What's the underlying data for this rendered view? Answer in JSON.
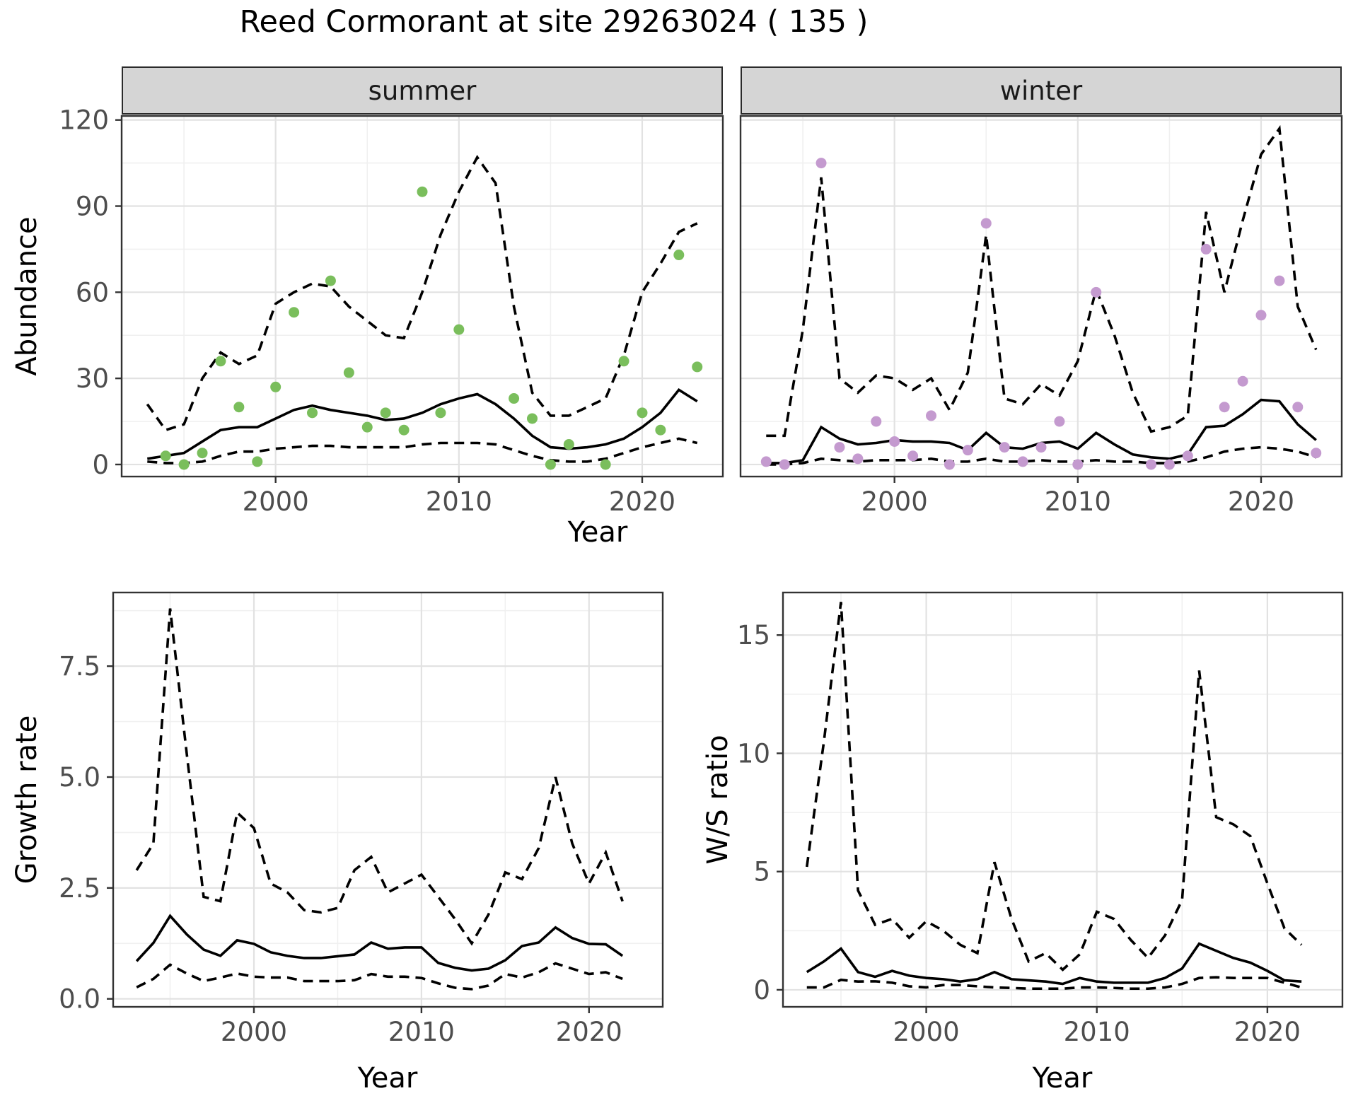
{
  "title": "Reed Cormorant at site 29263024 ( 135 )",
  "axis_titles": {
    "abundance": "Abundance",
    "year_top": "Year",
    "growth": "Growth rate",
    "ws": "W/S ratio",
    "year_growth": "Year",
    "year_ws": "Year"
  },
  "facets": {
    "summer": "summer",
    "winter": "winter"
  },
  "colors": {
    "summer_point": "#7abe5c",
    "winter_point": "#c49acf",
    "line": "#000000",
    "strip_bg": "#d5d5d5",
    "grid_major": "#e2e2e2",
    "grid_minor": "#f0f0f0",
    "panel_border": "#333333",
    "tick_text": "#4d4d4d"
  },
  "chart_data": {
    "type": "line",
    "title": "Reed Cormorant at site 29263024 ( 135 )",
    "legend_position": "none",
    "grid": true,
    "panels": [
      {
        "id": "summer",
        "facet_label": "summer",
        "xlabel": "Year",
        "ylabel": "Abundance",
        "xlim": [
          1991.6,
          2024.4
        ],
        "ylim": [
          -4.2,
          121.4
        ],
        "x_ticks": [
          {
            "v": 2000,
            "label": "2000"
          },
          {
            "v": 2010,
            "label": "2010"
          },
          {
            "v": 2020,
            "label": "2020"
          }
        ],
        "y_ticks": [
          {
            "v": 0,
            "label": "0"
          },
          {
            "v": 30,
            "label": "30"
          },
          {
            "v": 60,
            "label": "60"
          },
          {
            "v": 90,
            "label": "90"
          },
          {
            "v": 120,
            "label": "120"
          }
        ],
        "x_minor": [
          1995,
          2005,
          2015
        ],
        "y_minor": [
          15,
          45,
          75,
          105
        ],
        "point_color": "#7abe5c",
        "years": [
          1993,
          1994,
          1995,
          1996,
          1997,
          1998,
          1999,
          2000,
          2001,
          2002,
          2003,
          2004,
          2005,
          2006,
          2007,
          2008,
          2009,
          2010,
          2011,
          2012,
          2013,
          2014,
          2015,
          2016,
          2017,
          2018,
          2019,
          2020,
          2021,
          2022,
          2023
        ],
        "fit": [
          2,
          3,
          4,
          8,
          12,
          13,
          13,
          16,
          19,
          20.5,
          19,
          18,
          17,
          15.5,
          16,
          18,
          21,
          23,
          24.5,
          21,
          16,
          10,
          6,
          5.5,
          6,
          7,
          9,
          13,
          18,
          26,
          22
        ],
        "upper": [
          21,
          12,
          14,
          30,
          39,
          35,
          38,
          56,
          60,
          63,
          62,
          55,
          50,
          45,
          44,
          60,
          80,
          95,
          107,
          98,
          55,
          25,
          17,
          17,
          20,
          23,
          38,
          60,
          70,
          81,
          84
        ],
        "lower": [
          1,
          0.5,
          0.5,
          1,
          3,
          4.5,
          4.5,
          5.5,
          6,
          6.5,
          6.5,
          6,
          6,
          6,
          6,
          7,
          7.5,
          7.5,
          7.5,
          7,
          5,
          3,
          1.5,
          1,
          1,
          2,
          4,
          6,
          7.5,
          9,
          7.5
        ],
        "points": [
          [
            1994,
            3
          ],
          [
            1995,
            0
          ],
          [
            1996,
            4
          ],
          [
            1997,
            36
          ],
          [
            1998,
            20
          ],
          [
            1999,
            1
          ],
          [
            2000,
            27
          ],
          [
            2001,
            53
          ],
          [
            2002,
            18
          ],
          [
            2003,
            64
          ],
          [
            2004,
            32
          ],
          [
            2005,
            13
          ],
          [
            2006,
            18
          ],
          [
            2007,
            12
          ],
          [
            2008,
            95
          ],
          [
            2009,
            18
          ],
          [
            2010,
            47
          ],
          [
            2013,
            23
          ],
          [
            2014,
            16
          ],
          [
            2015,
            0
          ],
          [
            2016,
            7
          ],
          [
            2018,
            0
          ],
          [
            2019,
            36
          ],
          [
            2020,
            18
          ],
          [
            2021,
            12
          ],
          [
            2022,
            73
          ],
          [
            2023,
            34
          ]
        ]
      },
      {
        "id": "winter",
        "facet_label": "winter",
        "xlabel": "Year",
        "ylabel": "Abundance",
        "xlim": [
          1991.6,
          2024.4
        ],
        "ylim": [
          -4.2,
          121.4
        ],
        "x_ticks": [
          {
            "v": 2000,
            "label": "2000"
          },
          {
            "v": 2010,
            "label": "2010"
          },
          {
            "v": 2020,
            "label": "2020"
          }
        ],
        "y_ticks": [
          {
            "v": 0,
            "label": "0"
          },
          {
            "v": 30,
            "label": "30"
          },
          {
            "v": 60,
            "label": "60"
          },
          {
            "v": 90,
            "label": "90"
          },
          {
            "v": 120,
            "label": "120"
          }
        ],
        "x_minor": [
          1995,
          2005,
          2015
        ],
        "y_minor": [
          15,
          45,
          75,
          105
        ],
        "point_color": "#c49acf",
        "years": [
          1993,
          1994,
          1995,
          1996,
          1997,
          1998,
          1999,
          2000,
          2001,
          2002,
          2003,
          2004,
          2005,
          2006,
          2007,
          2008,
          2009,
          2010,
          2011,
          2012,
          2013,
          2014,
          2015,
          2016,
          2017,
          2018,
          2019,
          2020,
          2021,
          2022,
          2023
        ],
        "fit": [
          0.5,
          0.5,
          1.5,
          13,
          9,
          7,
          7.5,
          8.5,
          8,
          8,
          7.5,
          5,
          11,
          6,
          5.5,
          7.5,
          8,
          5.5,
          11,
          7,
          3.5,
          2.5,
          2,
          3.5,
          13,
          13.5,
          17.5,
          22.5,
          22,
          14,
          8.5
        ],
        "upper": [
          10,
          10,
          47,
          100,
          30,
          25,
          31,
          30,
          26,
          30,
          19,
          32,
          80,
          23,
          21,
          28,
          24,
          36,
          61,
          45,
          25,
          11.5,
          13,
          17,
          88,
          60,
          85,
          108,
          117,
          55,
          40
        ],
        "lower": [
          0,
          0,
          0.5,
          2,
          1.5,
          1,
          1.5,
          1.5,
          1.5,
          2,
          1,
          1,
          2,
          1,
          1,
          1.5,
          1,
          1,
          1.5,
          1,
          1,
          0.5,
          0.5,
          1,
          2.5,
          4.5,
          5.5,
          6,
          5.5,
          4.5,
          2.5
        ],
        "points": [
          [
            1993,
            1
          ],
          [
            1994,
            0
          ],
          [
            1996,
            105
          ],
          [
            1997,
            6
          ],
          [
            1998,
            2
          ],
          [
            1999,
            15
          ],
          [
            2000,
            8
          ],
          [
            2001,
            3
          ],
          [
            2002,
            17
          ],
          [
            2003,
            0
          ],
          [
            2004,
            5
          ],
          [
            2005,
            84
          ],
          [
            2006,
            6
          ],
          [
            2007,
            1
          ],
          [
            2008,
            6
          ],
          [
            2009,
            15
          ],
          [
            2010,
            0
          ],
          [
            2011,
            60
          ],
          [
            2014,
            0
          ],
          [
            2015,
            0
          ],
          [
            2016,
            3
          ],
          [
            2017,
            75
          ],
          [
            2018,
            20
          ],
          [
            2019,
            29
          ],
          [
            2020,
            52
          ],
          [
            2021,
            64
          ],
          [
            2022,
            20
          ],
          [
            2023,
            4
          ]
        ]
      },
      {
        "id": "growth",
        "facet_label": null,
        "xlabel": "Year",
        "ylabel": "Growth rate",
        "xlim": [
          1991.6,
          2024.4
        ],
        "ylim": [
          -0.18,
          9.16
        ],
        "x_ticks": [
          {
            "v": 2000,
            "label": "2000"
          },
          {
            "v": 2010,
            "label": "2010"
          },
          {
            "v": 2020,
            "label": "2020"
          }
        ],
        "y_ticks": [
          {
            "v": 0,
            "label": "0.0"
          },
          {
            "v": 2.5,
            "label": "2.5"
          },
          {
            "v": 5,
            "label": "5.0"
          },
          {
            "v": 7.5,
            "label": "7.5"
          }
        ],
        "x_minor": [
          1995,
          2005,
          2015
        ],
        "y_minor": [
          1.25,
          3.75,
          6.25,
          8.75
        ],
        "point_color": null,
        "years": [
          1993,
          1994,
          1995,
          1996,
          1997,
          1998,
          1999,
          2000,
          2001,
          2002,
          2003,
          2004,
          2005,
          2006,
          2007,
          2008,
          2009,
          2010,
          2011,
          2012,
          2013,
          2014,
          2015,
          2016,
          2017,
          2018,
          2019,
          2020,
          2021,
          2022
        ],
        "fit": [
          0.85,
          1.26,
          1.87,
          1.45,
          1.11,
          0.97,
          1.32,
          1.24,
          1.05,
          0.97,
          0.92,
          0.92,
          0.96,
          1.0,
          1.27,
          1.13,
          1.16,
          1.16,
          0.81,
          0.7,
          0.64,
          0.68,
          0.87,
          1.19,
          1.27,
          1.61,
          1.37,
          1.24,
          1.23,
          0.97
        ],
        "upper": [
          2.9,
          3.5,
          8.8,
          5.5,
          2.3,
          2.2,
          4.2,
          3.85,
          2.6,
          2.4,
          2.0,
          1.95,
          2.05,
          2.9,
          3.2,
          2.4,
          2.6,
          2.8,
          2.3,
          1.8,
          1.25,
          1.9,
          2.85,
          2.7,
          3.4,
          5.0,
          3.5,
          2.6,
          3.3,
          2.2
        ],
        "lower": [
          0.26,
          0.45,
          0.77,
          0.57,
          0.4,
          0.48,
          0.57,
          0.5,
          0.48,
          0.48,
          0.4,
          0.4,
          0.4,
          0.42,
          0.56,
          0.5,
          0.5,
          0.47,
          0.35,
          0.25,
          0.22,
          0.3,
          0.56,
          0.48,
          0.6,
          0.8,
          0.68,
          0.56,
          0.6,
          0.45
        ],
        "points": []
      },
      {
        "id": "ws",
        "facet_label": null,
        "xlabel": "Year",
        "ylabel": "W/S ratio",
        "xlim": [
          1991.6,
          2024.4
        ],
        "ylim": [
          -0.72,
          16.8
        ],
        "x_ticks": [
          {
            "v": 2000,
            "label": "2000"
          },
          {
            "v": 2010,
            "label": "2010"
          },
          {
            "v": 2020,
            "label": "2020"
          }
        ],
        "y_ticks": [
          {
            "v": 0,
            "label": "0"
          },
          {
            "v": 5,
            "label": "5"
          },
          {
            "v": 10,
            "label": "10"
          },
          {
            "v": 15,
            "label": "15"
          }
        ],
        "x_minor": [
          1995,
          2005,
          2015
        ],
        "y_minor": [
          2.5,
          7.5,
          12.5
        ],
        "point_color": null,
        "years": [
          1993,
          1994,
          1995,
          1996,
          1997,
          1998,
          1999,
          2000,
          2001,
          2002,
          2003,
          2004,
          2005,
          2006,
          2007,
          2008,
          2009,
          2010,
          2011,
          2012,
          2013,
          2014,
          2015,
          2016,
          2017,
          2018,
          2019,
          2020,
          2021,
          2022
        ],
        "fit": [
          0.75,
          1.2,
          1.74,
          0.75,
          0.55,
          0.8,
          0.6,
          0.5,
          0.45,
          0.35,
          0.45,
          0.75,
          0.45,
          0.4,
          0.35,
          0.25,
          0.5,
          0.35,
          0.3,
          0.3,
          0.3,
          0.5,
          0.9,
          1.95,
          1.65,
          1.35,
          1.15,
          0.8,
          0.4,
          0.35
        ],
        "upper": [
          5.2,
          10.5,
          16.4,
          4.2,
          2.75,
          3.0,
          2.2,
          2.9,
          2.5,
          1.9,
          1.55,
          5.4,
          3.0,
          1.2,
          1.55,
          0.85,
          1.5,
          3.3,
          3.0,
          2.1,
          1.35,
          2.3,
          3.8,
          13.5,
          7.3,
          7.0,
          6.5,
          4.5,
          2.6,
          1.9
        ],
        "lower": [
          0.1,
          0.1,
          0.42,
          0.35,
          0.36,
          0.3,
          0.15,
          0.1,
          0.2,
          0.2,
          0.15,
          0.1,
          0.08,
          0.05,
          0.05,
          0.05,
          0.1,
          0.1,
          0.08,
          0.05,
          0.05,
          0.1,
          0.25,
          0.5,
          0.53,
          0.5,
          0.5,
          0.5,
          0.3,
          0.1
        ],
        "points": []
      }
    ]
  }
}
